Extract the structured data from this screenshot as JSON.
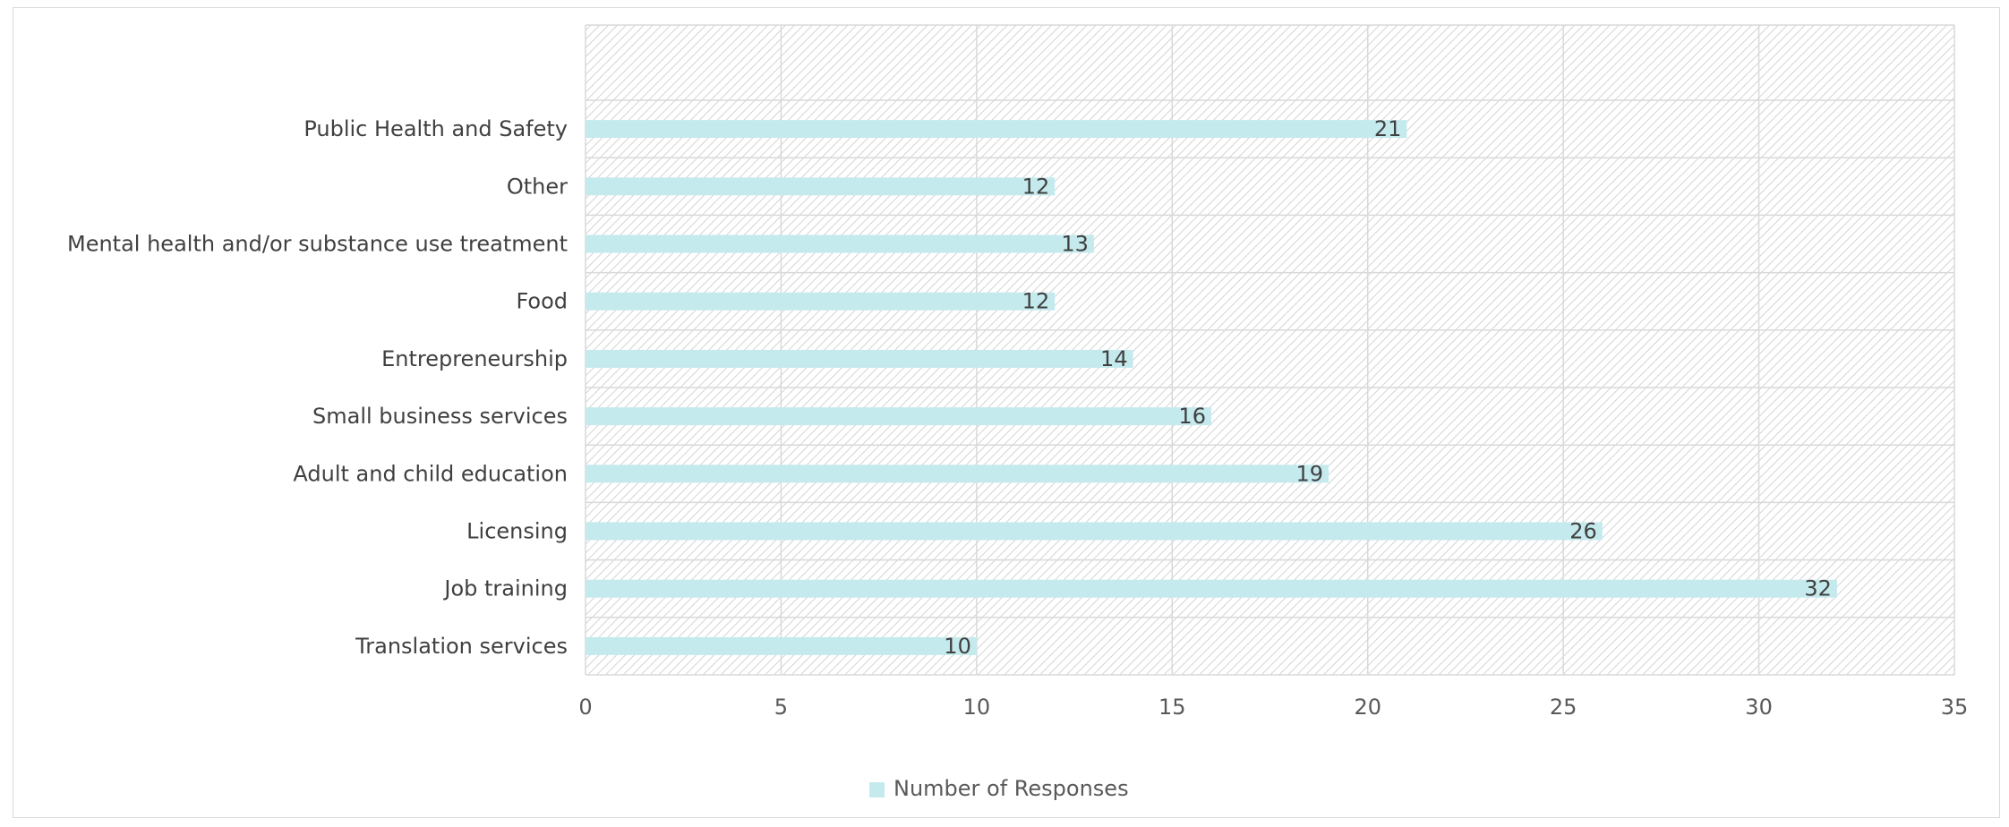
{
  "chart_data": {
    "type": "bar",
    "orientation": "horizontal",
    "categories": [
      "Public Health and Safety",
      "Other",
      "Mental health and/or substance use treatment",
      "Food",
      "Entrepreneurship",
      "Small business services",
      "Adult and child education",
      "Licensing",
      "Job training",
      "Translation services"
    ],
    "series": [
      {
        "name": "Number of Responses",
        "values": [
          21,
          12,
          13,
          12,
          14,
          16,
          19,
          26,
          32,
          10
        ],
        "color": "#c5eaee"
      }
    ],
    "xlim": [
      0,
      35
    ],
    "xticks": [
      0,
      5,
      10,
      15,
      20,
      25,
      30,
      35
    ],
    "grid": true,
    "plot_background": "hatched",
    "legend_position": "bottom",
    "data_labels": true
  }
}
